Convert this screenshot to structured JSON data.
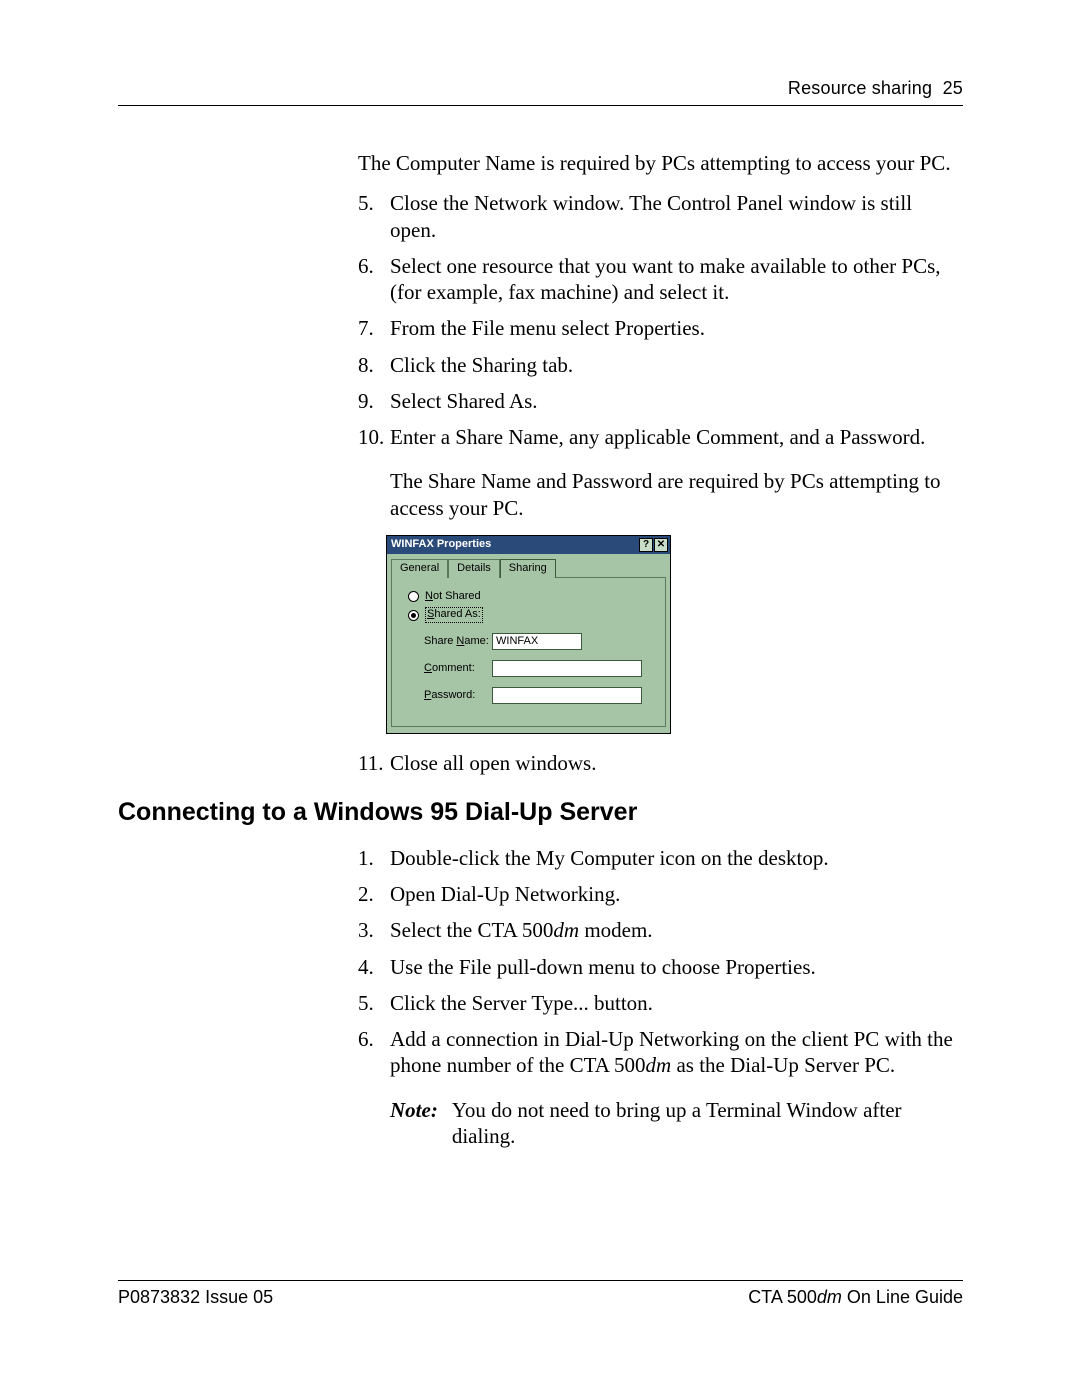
{
  "header": {
    "section": "Resource sharing",
    "page_num": "25"
  },
  "intro_para": "The Computer Name is required by PCs attempting to access your PC.",
  "steps_a": [
    "Close the Network window. The Control Panel window is still open.",
    "Select one resource that you want to make available to other PCs, (for example, fax machine) and select it.",
    "From the File menu select Properties.",
    "Click the Sharing tab.",
    "Select Shared As.",
    "Enter a Share Name, any applicable Comment, and a Password."
  ],
  "post10_para": "The Share Name and Password are required by PCs attempting to access your PC.",
  "step11": "Close all open windows.",
  "dialog": {
    "title": "WINFAX Properties",
    "help_btn": "?",
    "close_btn": "✕",
    "tabs": [
      "General",
      "Details",
      "Sharing"
    ],
    "active_tab": 2,
    "radios": {
      "not_shared": {
        "label_prefix": "N",
        "label_rest": "ot Shared",
        "checked": false
      },
      "shared_as": {
        "label_prefix": "S",
        "label_rest": "hared As:",
        "checked": true
      }
    },
    "fields": {
      "share_name": {
        "label_prefix": "Share ",
        "label_u": "N",
        "label_rest": "ame:",
        "value": "WINFAX"
      },
      "comment": {
        "label_u": "C",
        "label_rest": "omment:",
        "value": ""
      },
      "password": {
        "label_u": "P",
        "label_rest": "assword:",
        "value": ""
      }
    },
    "colors": {
      "panel_bg": "#a6c4a6",
      "titlebar_bg": "#2a4a7a",
      "titlebar_fg": "#ffffff",
      "input_bg": "#ffffff",
      "border": "#5b7a5b"
    }
  },
  "heading2": "Connecting to a Windows 95 Dial-Up Server",
  "steps_b": [
    "Double-click the My Computer icon on the desktop.",
    "Open Dial-Up Networking.",
    {
      "pre": "Select the CTA 500",
      "italic": "dm",
      "post": " modem."
    },
    "Use the File pull-down menu to choose Properties.",
    "Click the Server Type... button.",
    {
      "pre": "Add a connection in Dial-Up Networking on the client PC with the phone number of the CTA 500",
      "italic": "dm",
      "post": " as the Dial-Up Server PC."
    }
  ],
  "note": {
    "label": "Note:",
    "text": "You do not need to bring up a Terminal Window after dialing."
  },
  "footer": {
    "left": "P0873832  Issue 05",
    "right_pre": "CTA 500",
    "right_italic": "dm",
    "right_post": " On Line Guide"
  }
}
